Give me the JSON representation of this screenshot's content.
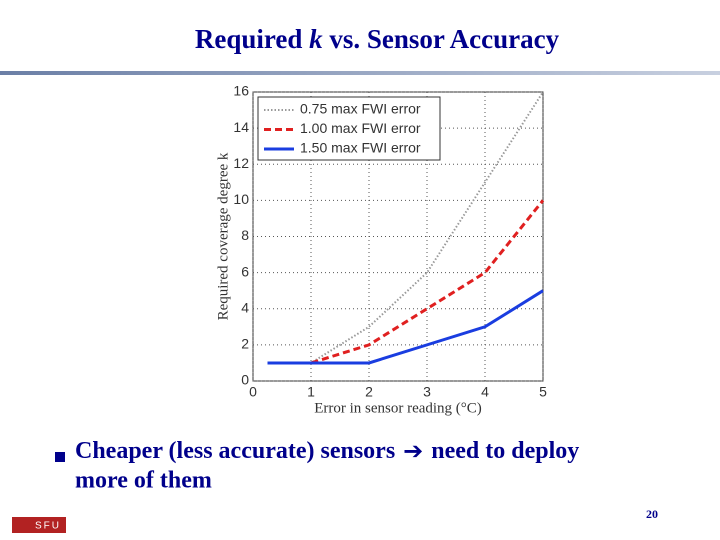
{
  "slide": {
    "title": {
      "before": "Required",
      "italic": "k",
      "after": "vs. Sensor Accuracy"
    },
    "bullet": {
      "before": "Cheaper (less accurate) sensors",
      "after_line1": "need to deploy",
      "line2": "more of them"
    },
    "page_number": "20",
    "logo": "SFU"
  },
  "chart_data": {
    "type": "line",
    "x_label": "Error in sensor reading (°C)",
    "y_label": "Required coverage degree k",
    "x": [
      0.25,
      1,
      2,
      3,
      4,
      5
    ],
    "series": [
      {
        "name": "0.75 max FWI error",
        "color": "#999999",
        "dash": "dotted",
        "values": [
          1,
          1,
          3,
          6,
          11,
          16
        ]
      },
      {
        "name": "1.00 max FWI error",
        "color": "#e02020",
        "dash": "dashed",
        "values": [
          1,
          1,
          2,
          4,
          6,
          10
        ]
      },
      {
        "name": "1.50 max FWI error",
        "color": "#1a3de0",
        "dash": "solid",
        "values": [
          1,
          1,
          1,
          2,
          3,
          5
        ]
      }
    ],
    "xlim": [
      0,
      5
    ],
    "xticks": [
      0,
      1,
      2,
      3,
      4,
      5
    ],
    "ylim": [
      0,
      16
    ],
    "yticks": [
      0,
      2,
      4,
      6,
      8,
      10,
      12,
      14,
      16
    ],
    "grid": true,
    "legend": "top-left"
  }
}
